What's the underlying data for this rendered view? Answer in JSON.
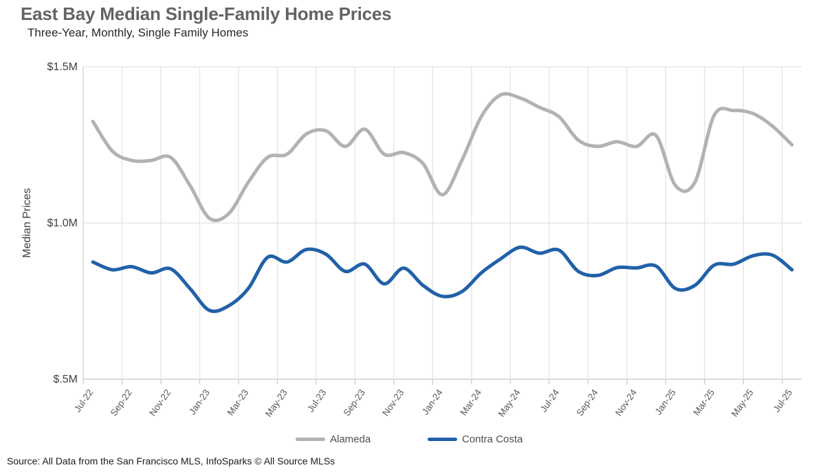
{
  "header": {
    "title": "East Bay Median Single-Family Home Prices",
    "subtitle": "Three-Year, Monthly, Single Family Homes"
  },
  "source_note": "Source: All Data from the San Francisco MLS, InfoSparks © All Source MLSs",
  "legend": {
    "items": [
      {
        "label": "Alameda",
        "color": "#b2b2b2"
      },
      {
        "label": "Contra Costa",
        "color": "#2161a8"
      }
    ]
  },
  "chart_data": {
    "type": "line",
    "title": "East Bay Median Single-Family Home Prices",
    "subtitle": "Three-Year, Monthly, Single Family Homes",
    "ylabel": "Median Prices",
    "unit": "USD millions",
    "ylim": [
      0.5,
      1.5
    ],
    "grid": "vertical-every-2-months, horizontal at 0.5/1.0/1.5",
    "legend_position": "bottom",
    "y_ticks": [
      {
        "label": "$1.5M",
        "value": 1.5
      },
      {
        "label": "$1.0M",
        "value": 1.0
      },
      {
        "label": "$.5M",
        "value": 0.5
      }
    ],
    "x_tick_labels": [
      "Jul-22",
      "Sep-22",
      "Nov-22",
      "Jan-23",
      "Mar-23",
      "May-23",
      "Jul-23",
      "Sep-23",
      "Nov-23",
      "Jan-24",
      "Mar-24",
      "May-24",
      "Jul-24",
      "Sep-24",
      "Nov-24",
      "Jan-25",
      "Mar-25",
      "May-25",
      "Jul-25"
    ],
    "categories": [
      "Jul-22",
      "Aug-22",
      "Sep-22",
      "Oct-22",
      "Nov-22",
      "Dec-22",
      "Jan-23",
      "Feb-23",
      "Mar-23",
      "Apr-23",
      "May-23",
      "Jun-23",
      "Jul-23",
      "Aug-23",
      "Sep-23",
      "Oct-23",
      "Nov-23",
      "Dec-23",
      "Jan-24",
      "Feb-24",
      "Mar-24",
      "Apr-24",
      "May-24",
      "Jun-24",
      "Jul-24",
      "Aug-24",
      "Sep-24",
      "Oct-24",
      "Nov-24",
      "Dec-24",
      "Jan-25",
      "Feb-25",
      "Mar-25",
      "Apr-25",
      "May-25",
      "Jun-25",
      "Jul-25"
    ],
    "series": [
      {
        "name": "Alameda",
        "color": "#b2b2b2",
        "values": [
          1.325,
          1.23,
          1.2,
          1.2,
          1.21,
          1.12,
          1.015,
          1.03,
          1.13,
          1.21,
          1.22,
          1.285,
          1.295,
          1.245,
          1.3,
          1.22,
          1.225,
          1.19,
          1.09,
          1.2,
          1.34,
          1.41,
          1.4,
          1.37,
          1.34,
          1.265,
          1.245,
          1.26,
          1.245,
          1.28,
          1.12,
          1.13,
          1.345,
          1.36,
          1.35,
          1.31,
          1.25
        ]
      },
      {
        "name": "Contra Costa",
        "color": "#2161a8",
        "values": [
          0.875,
          0.85,
          0.86,
          0.84,
          0.853,
          0.79,
          0.72,
          0.735,
          0.79,
          0.89,
          0.875,
          0.915,
          0.9,
          0.845,
          0.868,
          0.805,
          0.855,
          0.8,
          0.765,
          0.78,
          0.84,
          0.885,
          0.922,
          0.903,
          0.913,
          0.845,
          0.832,
          0.857,
          0.856,
          0.862,
          0.79,
          0.8,
          0.865,
          0.868,
          0.895,
          0.897,
          0.85
        ]
      }
    ]
  }
}
